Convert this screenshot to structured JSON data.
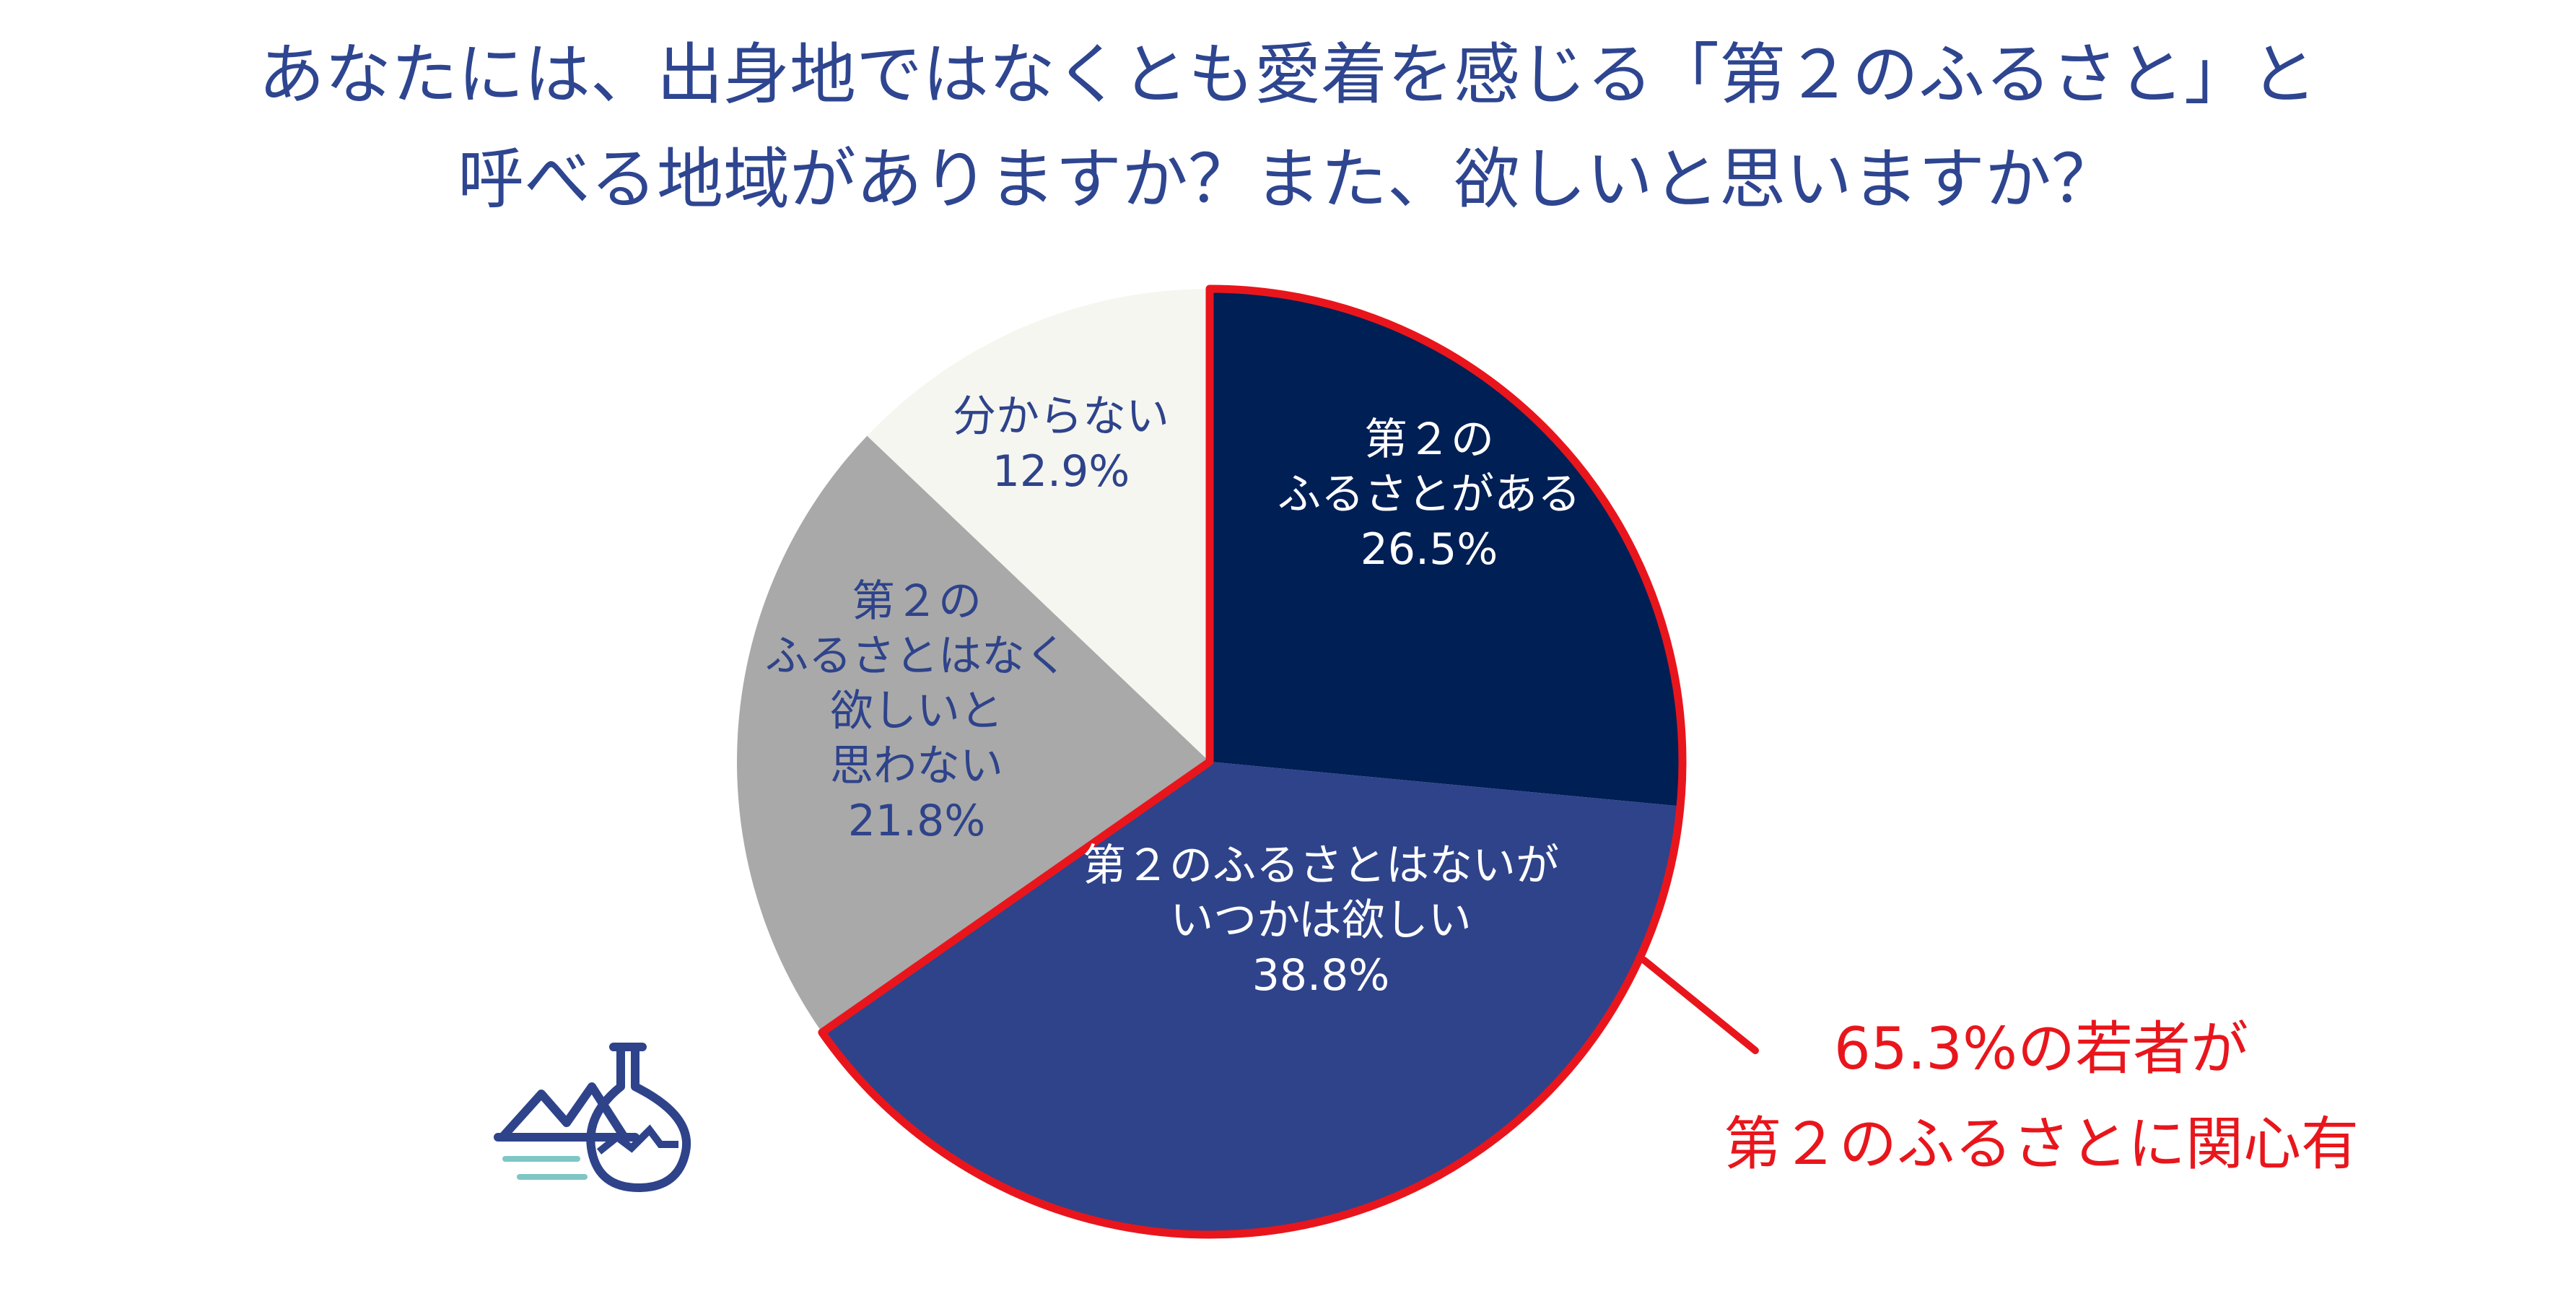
{
  "title_lines": [
    "あなたには、出身地ではなくとも愛着を感じる「第２のふるさと」と",
    "呼べる地域がありますか？また、欲しいと思いますか？"
  ],
  "chart_data": {
    "type": "pie",
    "title": "あなたには、出身地ではなくとも愛着を感じる「第２のふるさと」と呼べる地域がありますか？また、欲しいと思いますか？",
    "start_angle_deg": 0,
    "direction": "clockwise",
    "slices": [
      {
        "name_lines": [
          "第２の",
          "ふるさとがある"
        ],
        "value": 26.5,
        "value_label": "26.5%",
        "color": "#001f55",
        "text_color": "#ffffff",
        "highlighted": true
      },
      {
        "name_lines": [
          "第２のふるさとはないが",
          "いつかは欲しい"
        ],
        "value": 38.8,
        "value_label": "38.8%",
        "color": "#2e438a",
        "text_color": "#ffffff",
        "highlighted": true
      },
      {
        "name_lines": [
          "第２の",
          "ふるさとはなく",
          "欲しいと",
          "思わない"
        ],
        "value": 21.8,
        "value_label": "21.8%",
        "color": "#a9a9a9",
        "text_color": "#2e438a",
        "highlighted": false
      },
      {
        "name_lines": [
          "分からない"
        ],
        "value": 12.9,
        "value_label": "12.9%",
        "color": "#f5f6f0",
        "text_color": "#2e438a",
        "highlighted": false
      }
    ],
    "highlight_color": "#e8161c",
    "annotation_lines": [
      "65.3%の若者が",
      "第２のふるさとに関心有"
    ]
  },
  "logo": {
    "name": "factory-flask-logo-icon",
    "color": "#2e438a",
    "accent": "#7fc6c6"
  }
}
